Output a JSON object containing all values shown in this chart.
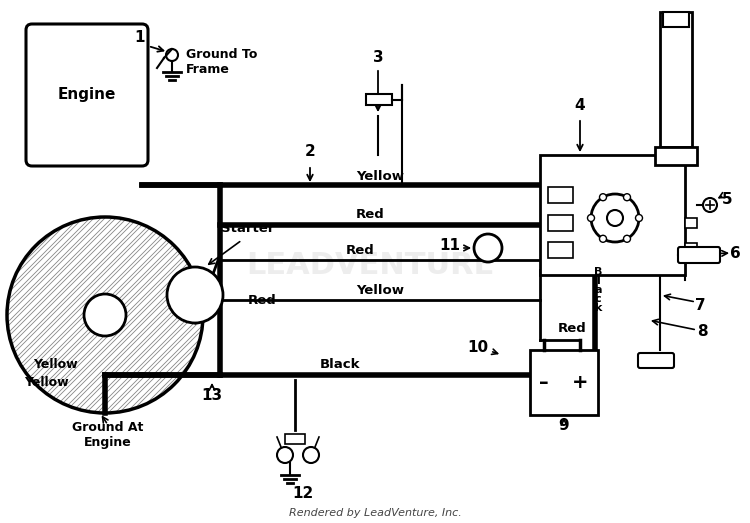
{
  "bg": "#ffffff",
  "lc": "#000000",
  "rendered_by": "Rendered by LeadVenture, Inc.",
  "engine_label": "Engine",
  "starter_label": "Starter",
  "ground_frame_label": "Ground To\nFrame",
  "ground_engine_label": "Ground At\nEngine",
  "yellow_label": "Yellow",
  "red_label": "Red",
  "black_label": "Black",
  "wire_lw": 2.0,
  "thick_lw": 4.0,
  "crosshatch_color": "#888888",
  "watermark_color": "#cccccc"
}
